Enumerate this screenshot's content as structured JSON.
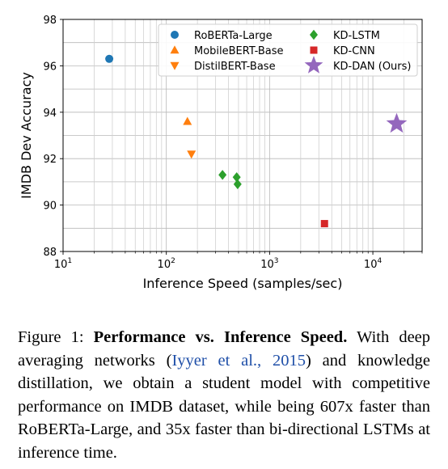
{
  "chart_data": {
    "type": "scatter",
    "xlabel": "Inference Speed (samples/sec)",
    "ylabel": "IMDB Dev Accuracy",
    "xscale": "log",
    "xlim": [
      10,
      30000
    ],
    "ylim": [
      88,
      98
    ],
    "x_ticks": [
      {
        "value": 10,
        "base": "10",
        "exp": "1"
      },
      {
        "value": 100,
        "base": "10",
        "exp": "2"
      },
      {
        "value": 1000,
        "base": "10",
        "exp": "3"
      },
      {
        "value": 10000,
        "base": "10",
        "exp": "4"
      }
    ],
    "y_ticks": [
      88,
      90,
      92,
      94,
      96,
      98
    ],
    "grid": true,
    "legend_placement": "top-right",
    "series": [
      {
        "name": "RoBERTa-Large",
        "marker": "circle",
        "color": "#1f77b4",
        "points": [
          {
            "x": 28,
            "y": 96.3
          }
        ]
      },
      {
        "name": "MobileBERT-Base",
        "marker": "triangle-up",
        "color": "#ff7f0e",
        "points": [
          {
            "x": 160,
            "y": 93.6
          }
        ]
      },
      {
        "name": "DistilBERT-Base",
        "marker": "triangle-down",
        "color": "#ff7f0e",
        "points": [
          {
            "x": 175,
            "y": 92.2
          }
        ]
      },
      {
        "name": "KD-LSTM",
        "marker": "diamond",
        "color": "#2ca02c",
        "points": [
          {
            "x": 350,
            "y": 91.3
          },
          {
            "x": 480,
            "y": 91.2
          },
          {
            "x": 490,
            "y": 90.9
          }
        ]
      },
      {
        "name": "KD-CNN",
        "marker": "square",
        "color": "#d62728",
        "points": [
          {
            "x": 3400,
            "y": 89.2
          }
        ]
      },
      {
        "name": "KD-DAN (Ours)",
        "marker": "star",
        "color": "#9467bd",
        "points": [
          {
            "x": 17000,
            "y": 93.5
          }
        ]
      }
    ]
  },
  "caption": {
    "label": "Figure 1:",
    "title": "Performance vs. Inference Speed.",
    "text_1": "With deep averaging networks (",
    "citation": "Iyyer et al., 2015",
    "text_2": ") and knowledge distillation, we obtain a student model with competitive performance on IMDB dataset, while being 607x faster than RoBERTa-Large, and 35x faster than bi-directional LSTMs at inference time."
  }
}
